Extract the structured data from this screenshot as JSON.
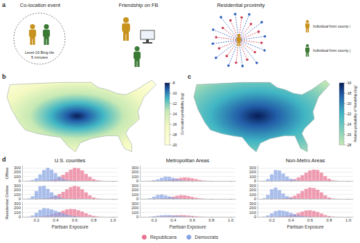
{
  "panel_a": {
    "label": "a",
    "titles": [
      "Co-location event",
      "Friendship on FB",
      "Residential proximity"
    ],
    "tile_text": "Level-16 Bing tile",
    "time_text": "5 minutes",
    "legend": [
      {
        "label": "Individual from county i",
        "color": "#c8921e"
      },
      {
        "label": "Individual from county j",
        "color": "#3b7a35"
      }
    ]
  },
  "panel_b": {
    "label": "b",
    "colorbar_title": "Co-location probability (log)",
    "colorbar_range": [
      -20,
      -8
    ],
    "colorbar_ticks": [
      -8,
      -10,
      -12,
      -14,
      -16,
      -18,
      -20
    ]
  },
  "panel_c": {
    "label": "c",
    "colorbar_title": "Relative probability of friendship (log)",
    "colorbar_range": [
      -28,
      -16
    ],
    "colorbar_ticks": [
      -16,
      -18,
      -20,
      -22,
      -24,
      -26,
      -28
    ]
  },
  "panel_d": {
    "label": "d",
    "column_titles": [
      "U.S. counties",
      "Metropolitan Areas",
      "Non-Metro Areas"
    ],
    "row_titles": [
      "Offline",
      "Online",
      "Residential"
    ],
    "legend": "bottom"
  },
  "chart_data": [
    {
      "type": "histogram",
      "bins": [
        0.1,
        0.14,
        0.18,
        0.22,
        0.26,
        0.3,
        0.34,
        0.38,
        0.42,
        0.46,
        0.5,
        0.54,
        0.58,
        0.62,
        0.66,
        0.7,
        0.74,
        0.78,
        0.82,
        0.86,
        0.9
      ],
      "series": [
        {
          "name": "Republicans",
          "color": "#e8708e",
          "values": [
            0,
            0,
            0,
            2,
            5,
            10,
            20,
            40,
            80,
            140,
            200,
            260,
            300,
            290,
            240,
            160,
            90,
            40,
            15,
            5
          ]
        },
        {
          "name": "Democrats",
          "color": "#86a3e3",
          "values": [
            5,
            20,
            60,
            150,
            250,
            300,
            260,
            180,
            100,
            50,
            20,
            8,
            3,
            0,
            0,
            0,
            0,
            0,
            0,
            0
          ]
        }
      ],
      "xlim": [
        0.05,
        1.05
      ],
      "xticks": [
        0.2,
        0.4,
        0.6,
        0.8,
        {
          "value": 1,
          "label": "1.0"
        }
      ],
      "ylim": [
        0,
        350
      ],
      "yticks": [
        0,
        100,
        200,
        300
      ],
      "grid": true,
      "tick_labels": "y"
    },
    {
      "type": "histogram",
      "bins": [
        0.1,
        0.14,
        0.18,
        0.22,
        0.26,
        0.3,
        0.34,
        0.38,
        0.42,
        0.46,
        0.5,
        0.54,
        0.58,
        0.62,
        0.66,
        0.7,
        0.74,
        0.78,
        0.82,
        0.86,
        0.9
      ],
      "series": [
        {
          "name": "Republicans",
          "color": "#e8708e",
          "values": [
            0,
            0,
            0,
            2,
            5,
            10,
            20,
            35,
            55,
            70,
            80,
            75,
            60,
            40,
            20,
            8,
            3,
            0,
            0,
            0
          ]
        },
        {
          "name": "Democrats",
          "color": "#86a3e3",
          "values": [
            0,
            5,
            15,
            35,
            70,
            100,
            95,
            70,
            40,
            20,
            8,
            3,
            0,
            0,
            0,
            0,
            0,
            0,
            0,
            0
          ]
        }
      ],
      "xlim": [
        0.05,
        1.05
      ],
      "xticks": [
        0.2,
        0.4,
        0.6,
        0.8,
        {
          "value": 1,
          "label": "1.0"
        }
      ],
      "ylim": [
        0,
        350
      ],
      "yticks": [
        0,
        100,
        200,
        300
      ],
      "grid": true,
      "tick_labels": "y"
    },
    {
      "type": "histogram",
      "bins": [
        0.1,
        0.14,
        0.18,
        0.22,
        0.26,
        0.3,
        0.34,
        0.38,
        0.42,
        0.46,
        0.5,
        0.54,
        0.58,
        0.62,
        0.66,
        0.7,
        0.74,
        0.78,
        0.82,
        0.86,
        0.9
      ],
      "series": [
        {
          "name": "Republicans",
          "color": "#e8708e",
          "values": [
            0,
            0,
            0,
            0,
            2,
            5,
            10,
            20,
            40,
            80,
            130,
            190,
            240,
            260,
            250,
            190,
            110,
            50,
            15,
            5
          ]
        },
        {
          "name": "Democrats",
          "color": "#86a3e3",
          "values": [
            5,
            40,
            150,
            250,
            240,
            170,
            100,
            50,
            20,
            8,
            3,
            0,
            0,
            0,
            0,
            0,
            0,
            0,
            0,
            0
          ]
        }
      ],
      "xlim": [
        0.05,
        1.05
      ],
      "xticks": [
        0.2,
        0.4,
        0.6,
        0.8,
        {
          "value": 1,
          "label": "1.0"
        }
      ],
      "ylim": [
        0,
        350
      ],
      "yticks": [
        0,
        100,
        200,
        300
      ],
      "grid": true,
      "tick_labels": "y"
    },
    {
      "type": "histogram",
      "bins": [
        0.1,
        0.14,
        0.18,
        0.22,
        0.26,
        0.3,
        0.34,
        0.38,
        0.42,
        0.46,
        0.5,
        0.54,
        0.58,
        0.62,
        0.66,
        0.7,
        0.74,
        0.78,
        0.82,
        0.86,
        0.9
      ],
      "series": [
        {
          "name": "Republicans",
          "color": "#e8708e",
          "values": [
            0,
            0,
            2,
            5,
            10,
            20,
            40,
            70,
            110,
            160,
            220,
            270,
            300,
            280,
            220,
            150,
            80,
            30,
            10,
            3
          ]
        },
        {
          "name": "Democrats",
          "color": "#86a3e3",
          "values": [
            10,
            60,
            180,
            290,
            300,
            230,
            150,
            80,
            40,
            15,
            5,
            2,
            0,
            0,
            0,
            0,
            0,
            0,
            0,
            0
          ]
        }
      ],
      "xlim": [
        0.05,
        1.05
      ],
      "xticks": [
        0.2,
        0.4,
        0.6,
        0.8,
        {
          "value": 1,
          "label": "1.0"
        }
      ],
      "ylim": [
        0,
        350
      ],
      "yticks": [
        0,
        100,
        200,
        300
      ],
      "grid": true,
      "tick_labels": "y"
    },
    {
      "type": "histogram",
      "bins": [
        0.1,
        0.14,
        0.18,
        0.22,
        0.26,
        0.3,
        0.34,
        0.38,
        0.42,
        0.46,
        0.5,
        0.54,
        0.58,
        0.62,
        0.66,
        0.7,
        0.74,
        0.78,
        0.82,
        0.86,
        0.9
      ],
      "series": [
        {
          "name": "Republicans",
          "color": "#e8708e",
          "values": [
            0,
            0,
            0,
            3,
            8,
            15,
            30,
            50,
            70,
            85,
            80,
            65,
            45,
            25,
            12,
            5,
            2,
            0,
            0,
            0
          ]
        },
        {
          "name": "Democrats",
          "color": "#86a3e3",
          "values": [
            2,
            15,
            50,
            90,
            100,
            80,
            55,
            30,
            15,
            6,
            2,
            0,
            0,
            0,
            0,
            0,
            0,
            0,
            0,
            0
          ]
        }
      ],
      "xlim": [
        0.05,
        1.05
      ],
      "xticks": [
        0.2,
        0.4,
        0.6,
        0.8,
        {
          "value": 1,
          "label": "1.0"
        }
      ],
      "ylim": [
        0,
        350
      ],
      "yticks": [
        0,
        100,
        200,
        300
      ],
      "grid": true,
      "tick_labels": "y"
    },
    {
      "type": "histogram",
      "bins": [
        0.1,
        0.14,
        0.18,
        0.22,
        0.26,
        0.3,
        0.34,
        0.38,
        0.42,
        0.46,
        0.5,
        0.54,
        0.58,
        0.62,
        0.66,
        0.7,
        0.74,
        0.78,
        0.82,
        0.86,
        0.9
      ],
      "series": [
        {
          "name": "Republicans",
          "color": "#e8708e",
          "values": [
            0,
            0,
            0,
            2,
            5,
            10,
            20,
            40,
            70,
            120,
            180,
            230,
            260,
            250,
            210,
            150,
            80,
            30,
            10,
            3
          ]
        },
        {
          "name": "Democrats",
          "color": "#86a3e3",
          "values": [
            15,
            90,
            220,
            260,
            200,
            120,
            60,
            25,
            10,
            3,
            0,
            0,
            0,
            0,
            0,
            0,
            0,
            0,
            0,
            0
          ]
        }
      ],
      "xlim": [
        0.05,
        1.05
      ],
      "xticks": [
        0.2,
        0.4,
        0.6,
        0.8,
        {
          "value": 1,
          "label": "1.0"
        }
      ],
      "ylim": [
        0,
        350
      ],
      "yticks": [
        0,
        100,
        200,
        300
      ],
      "grid": true,
      "tick_labels": "y"
    },
    {
      "type": "histogram",
      "bins": [
        0.1,
        0.14,
        0.18,
        0.22,
        0.26,
        0.3,
        0.34,
        0.38,
        0.42,
        0.46,
        0.5,
        0.54,
        0.58,
        0.62,
        0.66,
        0.7,
        0.74,
        0.78,
        0.82,
        0.86,
        0.9
      ],
      "series": [
        {
          "name": "Republicans",
          "color": "#e8708e",
          "values": [
            0,
            0,
            3,
            10,
            20,
            35,
            55,
            80,
            110,
            140,
            170,
            180,
            175,
            150,
            120,
            80,
            45,
            20,
            8,
            2
          ]
        },
        {
          "name": "Democrats",
          "color": "#86a3e3",
          "values": [
            5,
            30,
            90,
            160,
            200,
            190,
            170,
            140,
            110,
            80,
            50,
            30,
            15,
            5,
            2,
            0,
            0,
            0,
            0,
            0
          ]
        }
      ],
      "xlim": [
        0.05,
        1.05
      ],
      "xticks": [
        0.2,
        0.4,
        0.6,
        0.8,
        {
          "value": 1,
          "label": "1.0"
        }
      ],
      "ylim": [
        0,
        350
      ],
      "yticks": [
        0,
        100,
        200,
        300
      ],
      "grid": true,
      "xlabel": "Partisan Exposure"
    },
    {
      "type": "histogram",
      "bins": [
        0.1,
        0.14,
        0.18,
        0.22,
        0.26,
        0.3,
        0.34,
        0.38,
        0.42,
        0.46,
        0.5,
        0.54,
        0.58,
        0.62,
        0.66,
        0.7,
        0.74,
        0.78,
        0.82,
        0.86,
        0.9
      ],
      "series": [
        {
          "name": "Republicans",
          "color": "#e8708e",
          "values": [
            0,
            0,
            2,
            5,
            10,
            15,
            22,
            30,
            35,
            38,
            35,
            28,
            20,
            12,
            6,
            2,
            0,
            0,
            0,
            0
          ]
        },
        {
          "name": "Democrats",
          "color": "#86a3e3",
          "values": [
            0,
            5,
            12,
            25,
            35,
            40,
            38,
            32,
            25,
            18,
            10,
            5,
            2,
            0,
            0,
            0,
            0,
            0,
            0,
            0
          ]
        }
      ],
      "xlim": [
        0.05,
        1.05
      ],
      "xticks": [
        0.2,
        0.4,
        0.6,
        0.8,
        {
          "value": 1,
          "label": "1.0"
        }
      ],
      "ylim": [
        0,
        350
      ],
      "yticks": [
        0,
        100,
        200,
        300
      ],
      "grid": true,
      "xlabel": "Partisan Exposure"
    },
    {
      "type": "histogram",
      "bins": [
        0.1,
        0.14,
        0.18,
        0.22,
        0.26,
        0.3,
        0.34,
        0.38,
        0.42,
        0.46,
        0.5,
        0.54,
        0.58,
        0.62,
        0.66,
        0.7,
        0.74,
        0.78,
        0.82,
        0.86,
        0.9
      ],
      "series": [
        {
          "name": "Republicans",
          "color": "#e8708e",
          "values": [
            0,
            0,
            0,
            3,
            8,
            15,
            25,
            40,
            60,
            90,
            120,
            145,
            150,
            135,
            110,
            75,
            40,
            18,
            6,
            2
          ]
        },
        {
          "name": "Democrats",
          "color": "#86a3e3",
          "values": [
            5,
            30,
            80,
            130,
            150,
            140,
            120,
            90,
            60,
            35,
            18,
            8,
            3,
            0,
            0,
            0,
            0,
            0,
            0,
            0
          ]
        }
      ],
      "xlim": [
        0.05,
        1.05
      ],
      "xticks": [
        0.2,
        0.4,
        0.6,
        0.8,
        {
          "value": 1,
          "label": "1.0"
        }
      ],
      "ylim": [
        0,
        350
      ],
      "yticks": [
        0,
        100,
        200,
        300
      ],
      "grid": true,
      "xlabel": "Partisan Exposure"
    }
  ]
}
